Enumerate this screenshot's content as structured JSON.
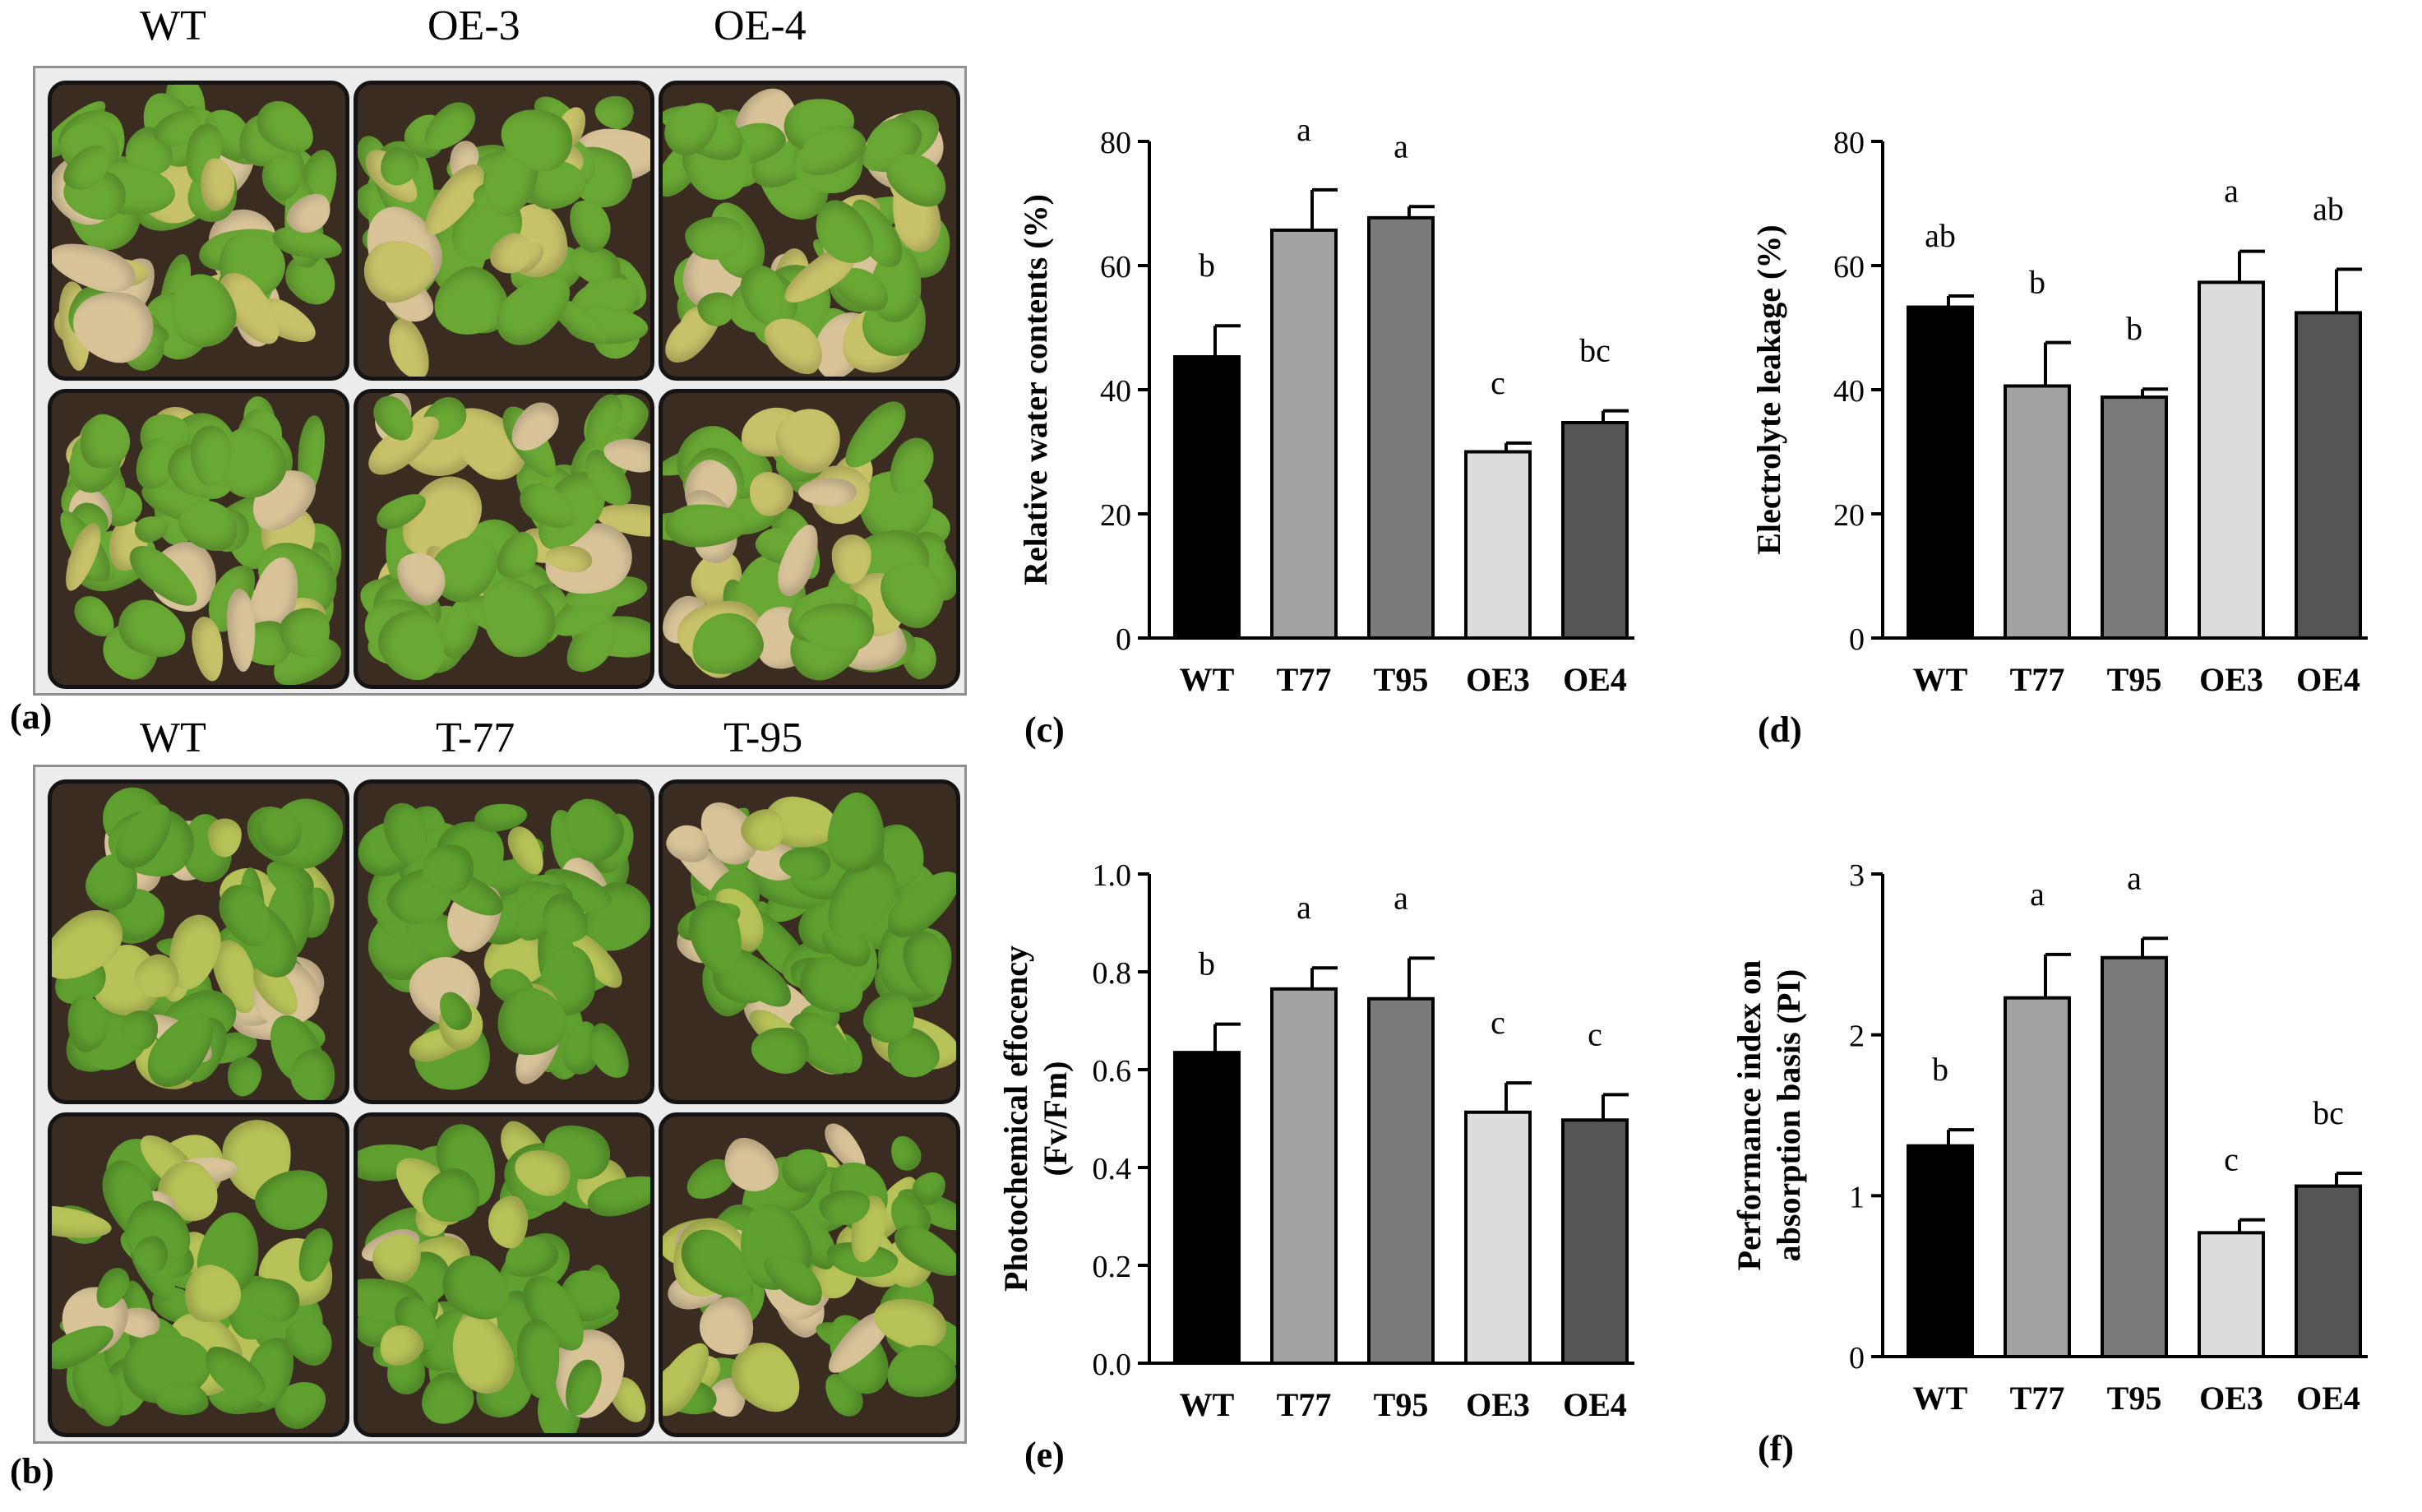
{
  "photos": [
    {
      "panel": "(a)",
      "labels": [
        "WT",
        "OE-3",
        "OE-4"
      ],
      "colors": {
        "healthy": "#6aa835",
        "stressed": "#c8c26a",
        "dry": "#d9c49a"
      }
    },
    {
      "panel": "(b)",
      "labels": [
        "WT",
        "T-77",
        "T-95"
      ],
      "colors": {
        "healthy": "#5fa030",
        "stressed": "#b7c258",
        "dry": "#d9c49a"
      }
    }
  ],
  "bar_colors": [
    "#000000",
    "#a3a3a3",
    "#7a7a7a",
    "#dcdcdc",
    "#555555"
  ],
  "chart_data": [
    {
      "panel": "(c)",
      "type": "bar",
      "categories": [
        "WT",
        "T77",
        "T95",
        "OE3",
        "OE4"
      ],
      "values": [
        45.3,
        65.7,
        67.7,
        30.0,
        34.7
      ],
      "errors": [
        5.0,
        6.5,
        1.8,
        1.4,
        1.9
      ],
      "letters": [
        "b",
        "a",
        "a",
        "c",
        "bc"
      ],
      "ylabel_lines": [
        "Relative water contents (%)"
      ],
      "ylim": [
        0,
        80
      ],
      "yticks": [
        "0",
        "20",
        "40",
        "60",
        "80"
      ]
    },
    {
      "panel": "(d)",
      "type": "bar",
      "categories": [
        "WT",
        "T77",
        "T95",
        "OE3",
        "OE4"
      ],
      "values": [
        53.3,
        40.6,
        38.8,
        57.3,
        52.4
      ],
      "errors": [
        1.8,
        7.0,
        1.3,
        5.0,
        7.0
      ],
      "letters": [
        "ab",
        "b",
        "b",
        "a",
        "ab"
      ],
      "ylabel_lines": [
        "Electrolyte leakage (%)"
      ],
      "ylim": [
        0,
        80
      ],
      "yticks": [
        "0",
        "20",
        "40",
        "60",
        "80"
      ]
    },
    {
      "panel": "(e)",
      "type": "bar",
      "categories": [
        "WT",
        "T77",
        "T95",
        "OE3",
        "OE4"
      ],
      "values": [
        0.635,
        0.765,
        0.745,
        0.513,
        0.497
      ],
      "errors": [
        0.058,
        0.043,
        0.083,
        0.06,
        0.052
      ],
      "letters": [
        "b",
        "a",
        "a",
        "c",
        "c"
      ],
      "ylabel_lines": [
        "Photochemical effocency",
        "(Fv/Fm)"
      ],
      "ylim": [
        0,
        1.0
      ],
      "yticks": [
        "0.0",
        "0.2",
        "0.4",
        "0.6",
        "0.8",
        "1.0"
      ]
    },
    {
      "panel": "(f)",
      "type": "bar",
      "categories": [
        "WT",
        "T77",
        "T95",
        "OE3",
        "OE4"
      ],
      "values": [
        1.31,
        2.23,
        2.48,
        0.77,
        1.06
      ],
      "errors": [
        0.1,
        0.27,
        0.12,
        0.08,
        0.08
      ],
      "letters": [
        "b",
        "a",
        "a",
        "c",
        "bc"
      ],
      "ylabel_lines": [
        "Performance index on",
        "absorption basis (PI)"
      ],
      "ylim": [
        0,
        3
      ],
      "yticks": [
        "0",
        "1",
        "2",
        "3"
      ]
    }
  ]
}
